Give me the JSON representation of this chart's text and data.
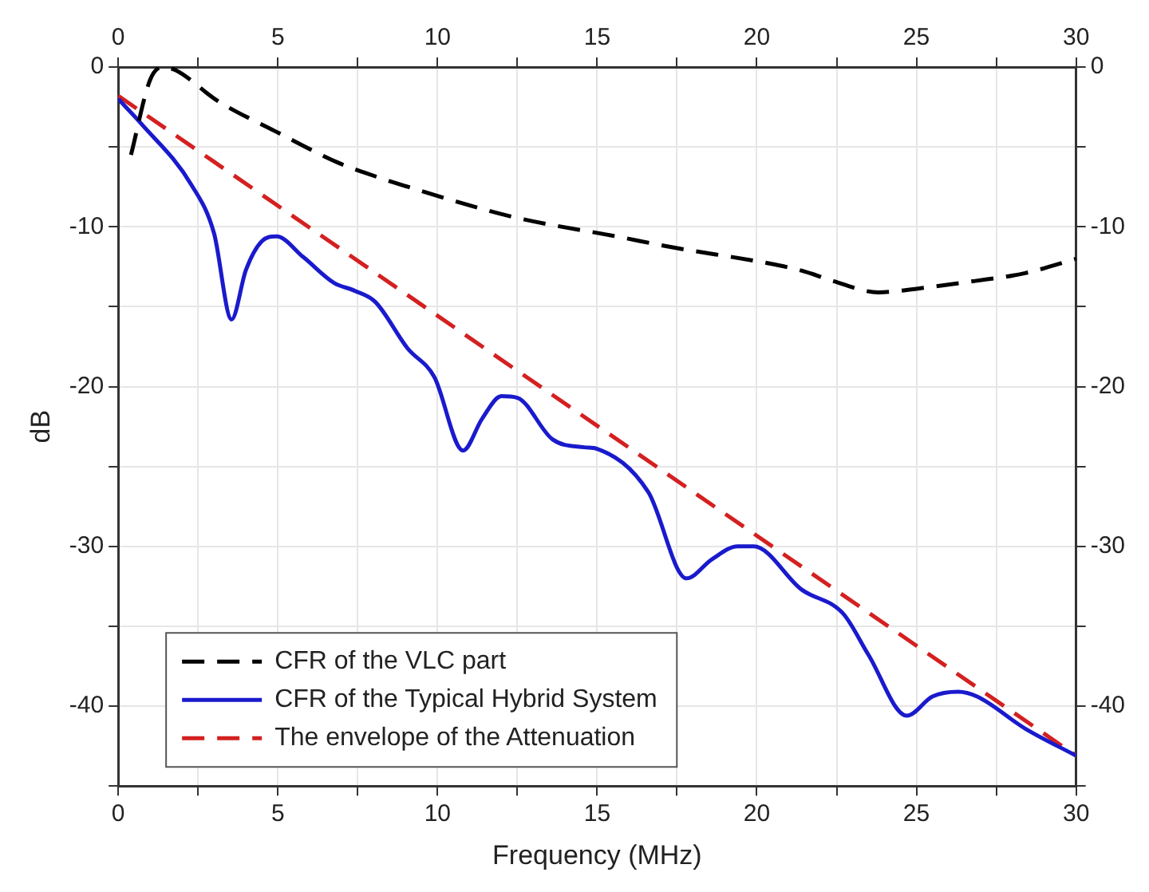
{
  "chart_data": {
    "type": "line",
    "xlabel": "Frequency (MHz)",
    "ylabel": "dB",
    "legend": "bottom left",
    "grid": true,
    "marker": "none",
    "xlim": [
      0,
      30
    ],
    "ylim": [
      -45,
      0
    ],
    "x2lim": [
      0,
      30
    ],
    "y2lim": [
      -45,
      0
    ],
    "xticks": [
      0,
      {
        "value": 2.5,
        "label": null
      },
      5,
      {
        "value": 7.5,
        "label": null
      },
      10,
      {
        "value": 12.5,
        "label": null
      },
      15,
      {
        "value": 17.5,
        "label": null
      },
      20,
      {
        "value": 22.5,
        "label": null
      },
      25,
      {
        "value": 27.5,
        "label": null
      },
      30
    ],
    "x2ticks": [
      0,
      {
        "value": 2.5,
        "label": null
      },
      5,
      {
        "value": 7.5,
        "label": null
      },
      10,
      {
        "value": 12.5,
        "label": null
      },
      15,
      {
        "value": 17.5,
        "label": null
      },
      20,
      {
        "value": 22.5,
        "label": null
      },
      25,
      {
        "value": 27.5,
        "label": null
      },
      30
    ],
    "yticks": [
      {
        "value": -45,
        "label": null
      },
      -40,
      {
        "value": -35,
        "label": null
      },
      -30,
      {
        "value": -25,
        "label": null
      },
      -20,
      {
        "value": -15,
        "label": null
      },
      -10,
      {
        "value": -5,
        "label": null
      },
      0
    ],
    "y2ticks": [
      {
        "value": -45,
        "label": null
      },
      -40,
      {
        "value": -35,
        "label": null
      },
      -30,
      {
        "value": -25,
        "label": null
      },
      -20,
      {
        "value": -15,
        "label": null
      },
      -10,
      {
        "value": -5,
        "label": null
      },
      0
    ],
    "series": [
      {
        "name": "CFR of the VLC part",
        "color": "#000000",
        "line_style": "dashed",
        "x": [
          0.4,
          1.0,
          1.4,
          1.8,
          3.1,
          4.9,
          6.9,
          7.7,
          9.4,
          12.4,
          15.6,
          17.4,
          20.4,
          21.5,
          22.4,
          23.8,
          25.3,
          26.8,
          28.4,
          30
        ],
        "values": [
          -5.5,
          -0.8,
          0,
          -0.2,
          -2.1,
          -4.0,
          -6.0,
          -6.6,
          -7.7,
          -9.4,
          -10.6,
          -11.3,
          -12.3,
          -12.8,
          -13.4,
          -14.1,
          -13.8,
          -13.4,
          -12.9,
          -12.0
        ]
      },
      {
        "name": "CFR of the Typical Hybrid System",
        "color": "#1a1acd",
        "line_style": "solid",
        "x": [
          0,
          0.7,
          2.3,
          3.0,
          3.55,
          4.0,
          4.5,
          4.95,
          5.8,
          6.75,
          7.4,
          8.05,
          9.06,
          9.9,
          10.8,
          11.4,
          12.0,
          12.5,
          13.6,
          14.6,
          15.0,
          16.6,
          17.8,
          18.6,
          19.4,
          19.9,
          21.4,
          22.7,
          23.5,
          24.7,
          25.5,
          26.3,
          26.9,
          28.4,
          30
        ],
        "values": [
          -2,
          -3.5,
          -7.4,
          -10.4,
          -15.8,
          -12.7,
          -10.9,
          -10.6,
          -11.9,
          -13.5,
          -14.0,
          -14.7,
          -17.6,
          -19.4,
          -24.0,
          -22.0,
          -20.6,
          -20.7,
          -23.3,
          -23.8,
          -23.9,
          -26.6,
          -32.0,
          -30.8,
          -30.0,
          -30.0,
          -32.7,
          -34.2,
          -36.8,
          -40.6,
          -39.4,
          -39.1,
          -39.4,
          -41.4,
          -43.1
        ]
      },
      {
        "name": "The envelope of the Attenuation",
        "color": "#d42020",
        "line_style": "dashed",
        "x": [
          0,
          30
        ],
        "values": [
          -1.8,
          -43.1
        ]
      }
    ]
  }
}
